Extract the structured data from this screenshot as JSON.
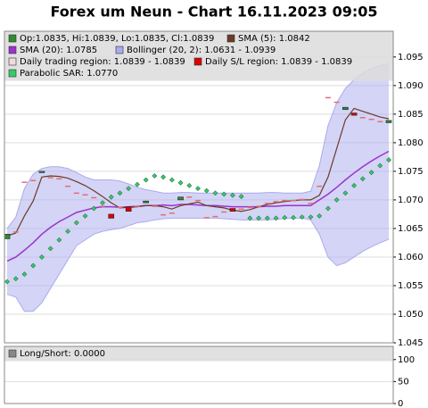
{
  "chart_data": [
    {
      "type": "candlestick",
      "title": "Forex um Neun - Chart 16.11.2023 09:05",
      "ylim": [
        1.045,
        1.0995
      ],
      "yticks": [
        {
          "value": 1.045,
          "label": "1.045"
        },
        {
          "value": 1.05,
          "label": "1.050"
        },
        1.055,
        {
          "value": 1.06,
          "label": "1.060"
        },
        1.065,
        {
          "value": 1.07,
          "label": "1.070"
        },
        1.075,
        {
          "value": 1.08,
          "label": "1.080"
        },
        1.085,
        {
          "value": 1.09,
          "label": "1.090"
        },
        1.095
      ],
      "grid": true,
      "series": [
        {
          "name": "Op:1.0835, Hi:1.0839, Lo:1.0835, Cl:1.0839",
          "color": "#2e8b2e",
          "open": [
            1.0632,
            1.0645,
            1.0732,
            1.0735,
            1.0748,
            1.074,
            1.0738,
            1.0725,
            1.0713,
            1.071,
            1.0705,
            1.069,
            1.0675,
            1.0688,
            1.0688,
            1.069,
            1.0695,
            1.069,
            1.0675,
            1.0678,
            1.07,
            1.0706,
            1.07,
            1.067,
            1.0672,
            1.068,
            1.0685,
            1.0685,
            1.0688,
            1.069,
            1.0695,
            1.0698,
            1.07,
            1.07,
            1.0702,
            1.0695,
            1.0725,
            1.088,
            1.0872,
            1.0858,
            1.0852,
            1.0845,
            1.0842,
            1.0838,
            1.0835
          ],
          "close": [
            1.064,
            1.0645,
            1.0732,
            1.0735,
            1.075,
            1.074,
            1.0738,
            1.0725,
            1.0713,
            1.071,
            1.0705,
            1.069,
            1.0668,
            1.0688,
            1.068,
            1.069,
            1.0698,
            1.069,
            1.0675,
            1.0678,
            1.0705,
            1.0706,
            1.07,
            1.067,
            1.0672,
            1.068,
            1.068,
            1.0685,
            1.0688,
            1.069,
            1.0695,
            1.0698,
            1.07,
            1.07,
            1.0702,
            1.0695,
            1.0725,
            1.088,
            1.0872,
            1.0862,
            1.0848,
            1.0845,
            1.0842,
            1.0838,
            1.0839
          ]
        },
        {
          "name": "SMA (5): 1.0842",
          "color": "#6b3a2a",
          "values": [
            1.0637,
            1.0642,
            1.0672,
            1.0698,
            1.074,
            1.0742,
            1.0741,
            1.0738,
            1.0732,
            1.0725,
            1.0716,
            1.0706,
            1.0695,
            1.0686,
            1.0687,
            1.0688,
            1.069,
            1.069,
            1.0688,
            1.0684,
            1.069,
            1.0693,
            1.0696,
            1.069,
            1.0688,
            1.0686,
            1.0682,
            1.068,
            1.0683,
            1.0688,
            1.0692,
            1.0695,
            1.0697,
            1.0699,
            1.07,
            1.07,
            1.0708,
            1.074,
            1.079,
            1.084,
            1.086,
            1.0855,
            1.085,
            1.0845,
            1.0842
          ]
        },
        {
          "name": "SMA (20): 1.0785",
          "color": "#9933cc",
          "values": [
            1.0593,
            1.06,
            1.0612,
            1.0625,
            1.064,
            1.0652,
            1.0662,
            1.067,
            1.0678,
            1.0682,
            1.0686,
            1.0688,
            1.0688,
            1.0687,
            1.0688,
            1.0689,
            1.069,
            1.069,
            1.0691,
            1.069,
            1.0692,
            1.0692,
            1.0691,
            1.069,
            1.069,
            1.0689,
            1.0688,
            1.0688,
            1.0688,
            1.0688,
            1.0689,
            1.0689,
            1.069,
            1.069,
            1.069,
            1.069,
            1.07,
            1.071,
            1.0722,
            1.0735,
            1.0747,
            1.0758,
            1.0768,
            1.0777,
            1.0785
          ]
        },
        {
          "name": "Bollinger (20, 2): 1.0631 - 1.0939",
          "color": "#aaaaee",
          "upper": [
            1.065,
            1.067,
            1.072,
            1.0745,
            1.0755,
            1.0758,
            1.0758,
            1.0755,
            1.0748,
            1.074,
            1.0735,
            1.0735,
            1.0735,
            1.0733,
            1.0728,
            1.0722,
            1.0718,
            1.0715,
            1.0712,
            1.0712,
            1.0713,
            1.0713,
            1.0712,
            1.0712,
            1.0712,
            1.0712,
            1.0712,
            1.0712,
            1.0712,
            1.0712,
            1.0713,
            1.0713,
            1.0712,
            1.0712,
            1.0712,
            1.0715,
            1.076,
            1.083,
            1.087,
            1.0895,
            1.091,
            1.0922,
            1.093,
            1.0935,
            1.0939
          ],
          "lower": [
            1.0535,
            1.053,
            1.0505,
            1.0505,
            1.052,
            1.0545,
            1.057,
            1.0595,
            1.062,
            1.063,
            1.064,
            1.0645,
            1.0648,
            1.065,
            1.0655,
            1.066,
            1.0662,
            1.0665,
            1.0667,
            1.0668,
            1.0668,
            1.0668,
            1.0668,
            1.0668,
            1.0668,
            1.0667,
            1.0666,
            1.0665,
            1.0665,
            1.0665,
            1.0665,
            1.0666,
            1.0667,
            1.0668,
            1.0668,
            1.0665,
            1.064,
            1.06,
            1.0585,
            1.059,
            1.06,
            1.061,
            1.0618,
            1.0625,
            1.0631
          ]
        },
        {
          "name": "Daily trading region: 1.0839 - 1.0839",
          "color": "#f0dcdc"
        },
        {
          "name": "Daily S/L region: 1.0839 - 1.0839",
          "color": "#dd0000"
        },
        {
          "name": "Parabolic SAR: 1.0770",
          "color": "#33cc66",
          "values": [
            1.0557,
            1.0562,
            1.057,
            1.0585,
            1.06,
            1.0615,
            1.063,
            1.0645,
            1.066,
            1.0672,
            1.0685,
            1.0695,
            1.0705,
            1.0712,
            1.072,
            1.0727,
            1.0735,
            1.0742,
            1.074,
            1.0735,
            1.073,
            1.0725,
            1.072,
            1.0716,
            1.0712,
            1.071,
            1.0708,
            1.0706,
            1.0668,
            1.0668,
            1.0668,
            1.0668,
            1.0669,
            1.0669,
            1.067,
            1.067,
            1.0672,
            1.0685,
            1.07,
            1.0712,
            1.0725,
            1.0737,
            1.0748,
            1.076,
            1.077
          ]
        }
      ]
    },
    {
      "type": "line",
      "ylim": [
        0,
        130
      ],
      "yticks": [
        0,
        50,
        100
      ],
      "grid": true,
      "series": [
        {
          "name": "Long/Short: 0.0000",
          "color": "#888888"
        }
      ]
    }
  ]
}
